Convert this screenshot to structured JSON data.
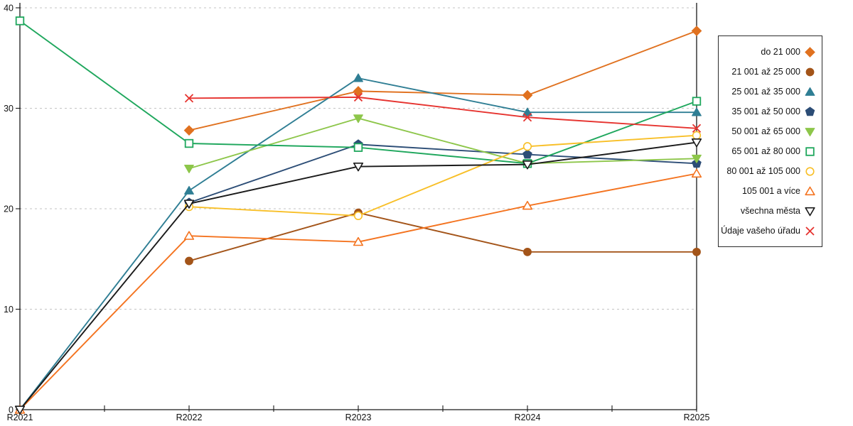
{
  "chart_data": {
    "type": "line",
    "title": "",
    "categories": [
      "R2021",
      "R2022",
      "R2023",
      "R2024",
      "R2025"
    ],
    "xlabel": "",
    "ylabel": "",
    "ylim": [
      0,
      40
    ],
    "y_ticks": [
      0,
      10,
      20,
      30,
      40
    ],
    "grid": "horizontal-dashed",
    "legend_position": "right-outside-box",
    "series": [
      {
        "name": "do 21 000",
        "color": "#e0711f",
        "marker": "diamond",
        "filled": true,
        "values": [
          null,
          27.8,
          31.7,
          31.3,
          37.7
        ]
      },
      {
        "name": "21 001 až 25 000",
        "color": "#a35419",
        "marker": "circle",
        "filled": true,
        "values": [
          null,
          14.8,
          19.6,
          15.7,
          15.7
        ]
      },
      {
        "name": "25 001 až 35 000",
        "color": "#2f7e94",
        "marker": "triangle-up",
        "filled": true,
        "values": [
          0,
          21.8,
          33.0,
          29.6,
          29.6
        ]
      },
      {
        "name": "35 001 až 50 000",
        "color": "#2c4d76",
        "marker": "pentagon",
        "filled": true,
        "values": [
          null,
          20.6,
          26.4,
          25.4,
          24.5
        ]
      },
      {
        "name": "50 001 až 65 000",
        "color": "#8dc64a",
        "marker": "triangle-down",
        "filled": true,
        "values": [
          null,
          24.0,
          29.0,
          24.5,
          25.0
        ]
      },
      {
        "name": "65 001 až 80 000",
        "color": "#1fa75d",
        "marker": "square",
        "filled": false,
        "values": [
          38.7,
          26.5,
          26.1,
          24.5,
          30.7
        ]
      },
      {
        "name": "80 001 až 105 000",
        "color": "#f8bf27",
        "marker": "circle",
        "filled": false,
        "values": [
          null,
          20.2,
          19.3,
          26.2,
          27.3
        ]
      },
      {
        "name": "105 001 a více",
        "color": "#f4731f",
        "marker": "triangle-up",
        "filled": false,
        "values": [
          0,
          17.3,
          16.7,
          20.3,
          23.5
        ]
      },
      {
        "name": "všechna města",
        "color": "#1a1a1a",
        "marker": "triangle-down",
        "filled": false,
        "values": [
          0,
          20.5,
          24.2,
          24.4,
          26.6
        ]
      },
      {
        "name": "Údaje vašeho úřadu",
        "color": "#e6332f",
        "marker": "x",
        "filled": false,
        "values": [
          null,
          31.0,
          31.1,
          29.1,
          28.0
        ]
      }
    ],
    "colors": {
      "axis": "#1a1a1a",
      "gridline": "#c3c3c3",
      "background": "#ffffff",
      "legend_border": "#2b2b2b"
    }
  }
}
